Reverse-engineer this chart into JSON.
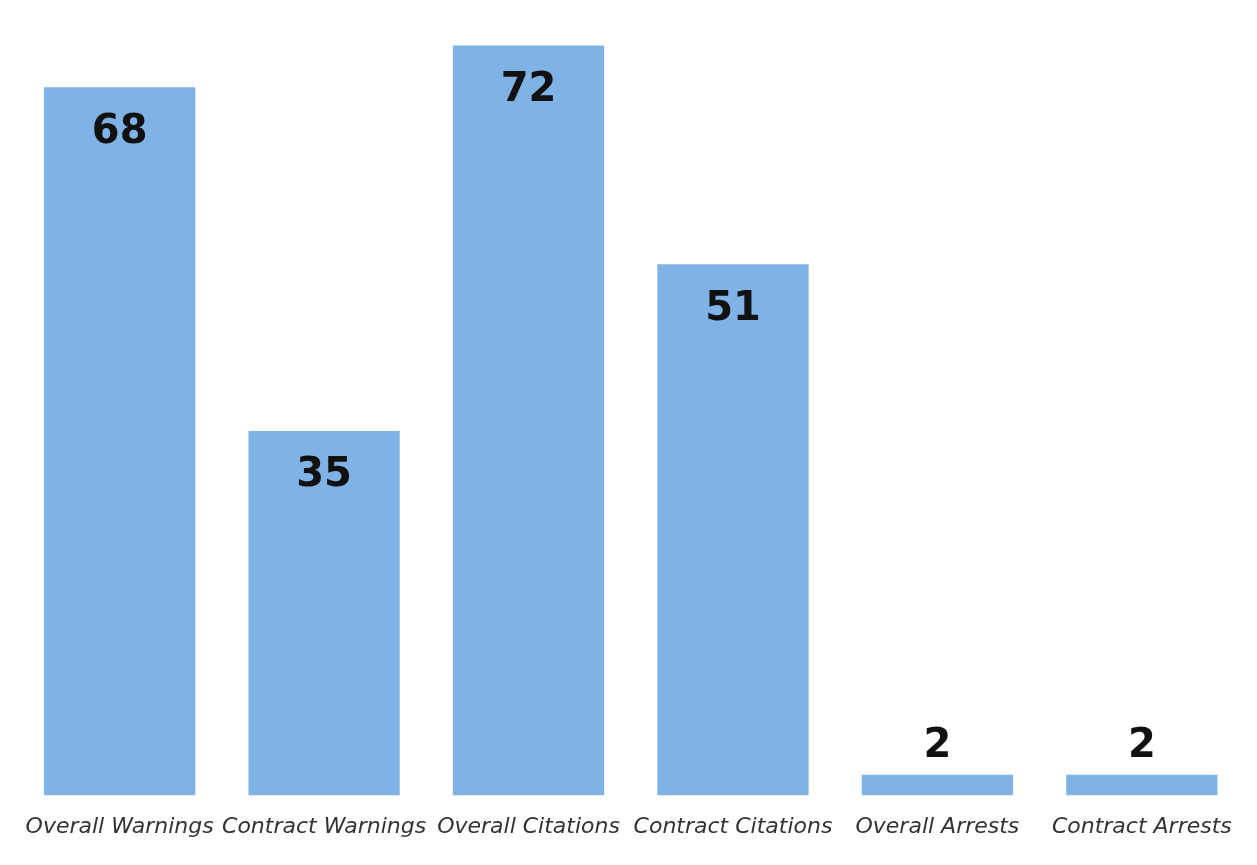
{
  "chart_data": {
    "type": "bar",
    "categories": [
      "Overall Warnings",
      "Contract Warnings",
      "Overall Citations",
      "Contract Citations",
      "Overall Arrests",
      "Contract Arrests"
    ],
    "values": [
      68,
      35,
      72,
      51,
      2,
      2
    ],
    "color": "#7fb2e5",
    "tick_labels": "x",
    "data_labels": true,
    "grid": false,
    "legend": false
  }
}
